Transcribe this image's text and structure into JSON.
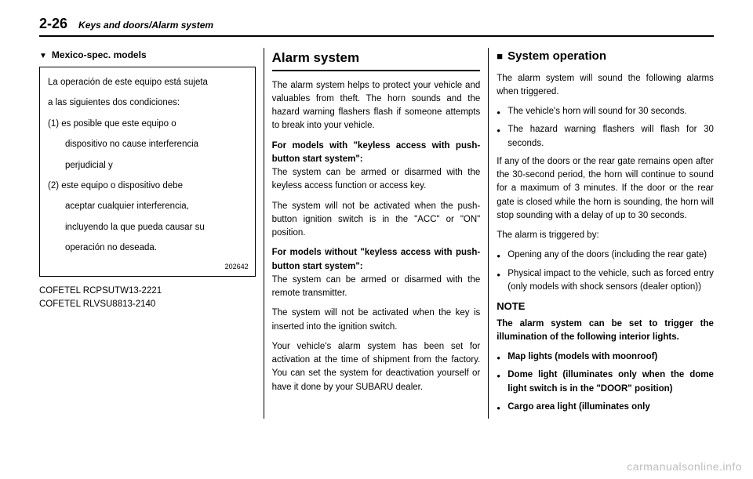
{
  "header": {
    "page_number": "2-26",
    "section_path": "Keys and doors/Alarm system"
  },
  "col1": {
    "subhead": "Mexico-spec. models",
    "box": {
      "line1": "La operación de este equipo está sujeta",
      "line2": "a las siguientes dos condiciones:",
      "item1_label": "(1) es posible que este equipo o",
      "item1_cont1": "dispositivo no cause interferencia",
      "item1_cont2": "perjudicial y",
      "item2_label": "(2) este equipo o dispositivo debe",
      "item2_cont1": "aceptar cualquier interferencia,",
      "item2_cont2": "incluyendo la que pueda causar su",
      "item2_cont3": "operación no deseada.",
      "imgnum": "202642"
    },
    "cofetel1": "COFETEL RCPSUTW13-2221",
    "cofetel2": "COFETEL RLVSU8813-2140"
  },
  "col2": {
    "title": "Alarm system",
    "p1": "The alarm system helps to protect your vehicle and valuables from theft. The horn sounds and the hazard warning flashers flash if someone attempts to break into your vehicle.",
    "p2_bold": "For models with \"keyless access with push-button start system\":",
    "p2": "The system can be armed or disarmed with the keyless access function or access key.",
    "p3": "The system will not be activated when the push-button ignition switch is in the \"ACC\" or \"ON\" position.",
    "p4_bold": "For models without \"keyless access with push-button start system\":",
    "p4": "The system can be armed or disarmed with the remote transmitter.",
    "p5": "The system will not be activated when the key is inserted into the ignition switch.",
    "p6": "Your vehicle's alarm system has been set for activation at the time of shipment from the factory. You can set the system for deactivation yourself or have it done by your SUBARU dealer."
  },
  "col3": {
    "h2": "System operation",
    "p1": "The alarm system will sound the following alarms when triggered.",
    "b1": "The vehicle's horn will sound for 30 seconds.",
    "b2": "The hazard warning flashers will flash for 30 seconds.",
    "p2": "If any of the doors or the rear gate remains open after the 30-second period, the horn will continue to sound for a maximum of 3 minutes. If the door or the rear gate is closed while the horn is sounding, the horn will stop sounding with a delay of up to 30 seconds.",
    "p3": "The alarm is triggered by:",
    "b3": "Opening any of the doors (including the rear gate)",
    "b4": "Physical impact to the vehicle, such as forced entry (only models with shock sensors (dealer option))",
    "note_head": "NOTE",
    "note_p": "The alarm system can be set to trigger the illumination of the following interior lights.",
    "nb1": "Map lights (models with moonroof)",
    "nb2": "Dome light (illuminates only when the dome light switch is in the \"DOOR\" position)",
    "nb3": "Cargo area light (illuminates only"
  },
  "watermark": "carmanualsonline.info"
}
